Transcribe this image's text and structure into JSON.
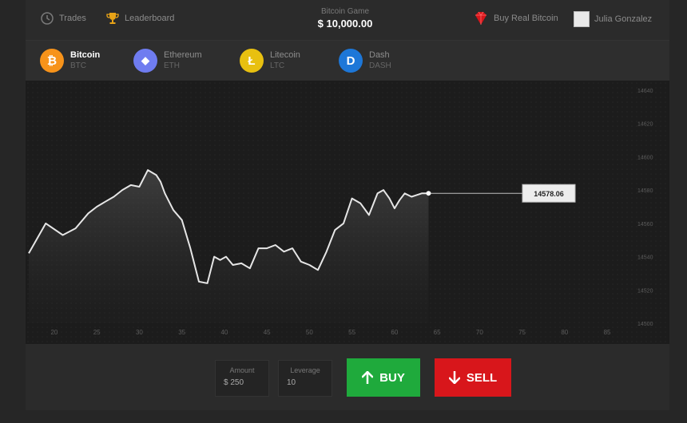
{
  "header": {
    "trades_label": "Trades",
    "leaderboard_label": "Leaderboard",
    "game_title": "Bitcoin Game",
    "balance": "$ 10,000.00",
    "buy_real_label": "Buy Real Bitcoin",
    "user_name": "Julia Gonzalez"
  },
  "coins": [
    {
      "name": "Bitcoin",
      "symbol": "BTC",
      "glyph": "₿",
      "color": "#f7931a",
      "active": true
    },
    {
      "name": "Ethereum",
      "symbol": "ETH",
      "glyph": "◆",
      "color": "#6f7cf0",
      "active": false
    },
    {
      "name": "Litecoin",
      "symbol": "LTC",
      "glyph": "Ł",
      "color": "#e8c010",
      "active": false
    },
    {
      "name": "Dash",
      "symbol": "DASH",
      "glyph": "D",
      "color": "#1d77d8",
      "active": false
    }
  ],
  "chart_data": {
    "type": "line",
    "current_price_label": "14578.06",
    "x_ticks": [
      "20",
      "25",
      "30",
      "35",
      "40",
      "45",
      "50",
      "55",
      "60",
      "65",
      "70",
      "75",
      "80",
      "85"
    ],
    "y_ticks": [
      "14640",
      "14620",
      "14600",
      "14580",
      "14560",
      "14540",
      "14520",
      "14500"
    ],
    "ylim": [
      14500,
      14640
    ],
    "xlim": [
      17,
      88
    ],
    "x": [
      17,
      19,
      21,
      22.5,
      24,
      25,
      26,
      27,
      28,
      29,
      30,
      31,
      32,
      32.5,
      33,
      34,
      35,
      36,
      37,
      38,
      38.8,
      39.5,
      40.2,
      41,
      42,
      43,
      44,
      45,
      46,
      47,
      48,
      49,
      50,
      51,
      52,
      53,
      54,
      55,
      56,
      57,
      58,
      58.7,
      59.4,
      60,
      60.6,
      61.2,
      62,
      62.6,
      63.2,
      64
    ],
    "y": [
      14542,
      14560,
      14553,
      14557,
      14566,
      14570,
      14573,
      14576,
      14580,
      14583,
      14582,
      14592,
      14589,
      14585,
      14578,
      14568,
      14562,
      14545,
      14525,
      14524,
      14540,
      14538,
      14540,
      14535,
      14536,
      14533,
      14545,
      14545,
      14547,
      14543,
      14545,
      14537,
      14535,
      14532,
      14543,
      14556,
      14560,
      14575,
      14572,
      14565,
      14578,
      14580,
      14575,
      14569,
      14574,
      14578,
      14576,
      14577,
      14578,
      14578.06
    ]
  },
  "trade": {
    "amount_label": "Amount",
    "amount_value": "$ 250",
    "leverage_label": "Leverage",
    "leverage_value": "10",
    "buy_label": "BUY",
    "sell_label": "SELL"
  }
}
